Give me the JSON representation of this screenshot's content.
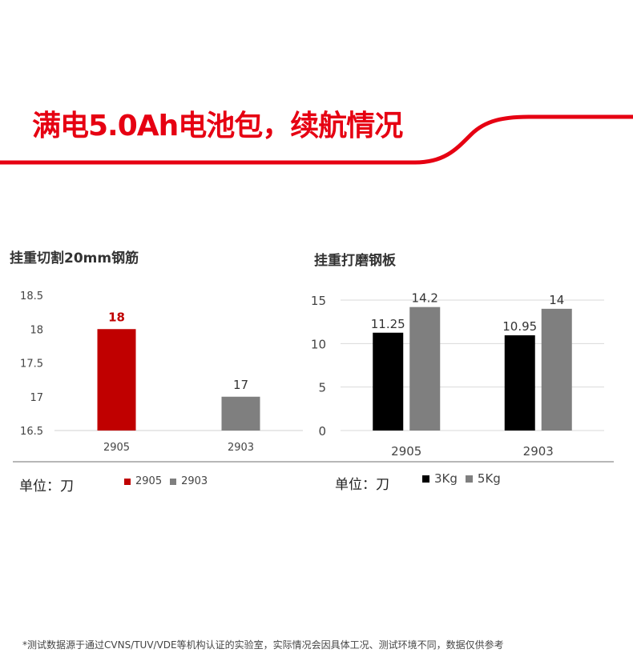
{
  "header": {
    "title": "满电5.0Ah电池包，续航情况"
  },
  "colors": {
    "brand_red": "#e60012",
    "bar_red": "#c00000",
    "bar_gray": "#7f7f7f",
    "bar_black": "#000000"
  },
  "chart_data": [
    {
      "type": "bar",
      "title": "挂重切割20mm钢筋",
      "categories": [
        "2905",
        "2903"
      ],
      "values": [
        18,
        17
      ],
      "data_labels": [
        "18",
        "17"
      ],
      "bar_colors": [
        "#c00000",
        "#7f7f7f"
      ],
      "label_colors": [
        "#c00000",
        "#333333"
      ],
      "ylim": [
        16.5,
        18.5
      ],
      "yticks": [
        16.5,
        17,
        17.5,
        18,
        18.5
      ],
      "ytick_labels": [
        "16.5",
        "17",
        "17.5",
        "18",
        "18.5"
      ],
      "grid": false,
      "unit_label": "单位：刀",
      "legend": [
        {
          "name": "2905",
          "color": "#c00000"
        },
        {
          "name": "2903",
          "color": "#7f7f7f"
        }
      ]
    },
    {
      "type": "bar",
      "title": "挂重打磨钢板",
      "categories": [
        "2905",
        "2903"
      ],
      "series": [
        {
          "name": "3Kg",
          "values": [
            11.25,
            10.95
          ],
          "labels": [
            "11.25",
            "10.95"
          ],
          "color": "#000000"
        },
        {
          "name": "5Kg",
          "values": [
            14.2,
            14
          ],
          "labels": [
            "14.2",
            "14"
          ],
          "color": "#7f7f7f"
        }
      ],
      "ylim": [
        0,
        15
      ],
      "yticks": [
        0,
        5,
        10,
        15
      ],
      "ytick_labels": [
        "0",
        "5",
        "10",
        "15"
      ],
      "grid": true,
      "unit_label": "单位：刀",
      "legend_position": "bottom"
    }
  ],
  "footnote": "*测试数据源于通过CVNS/TUV/VDE等机构认证的实验室，实际情况会因具体工况、测试环境不同，数据仅供参考"
}
